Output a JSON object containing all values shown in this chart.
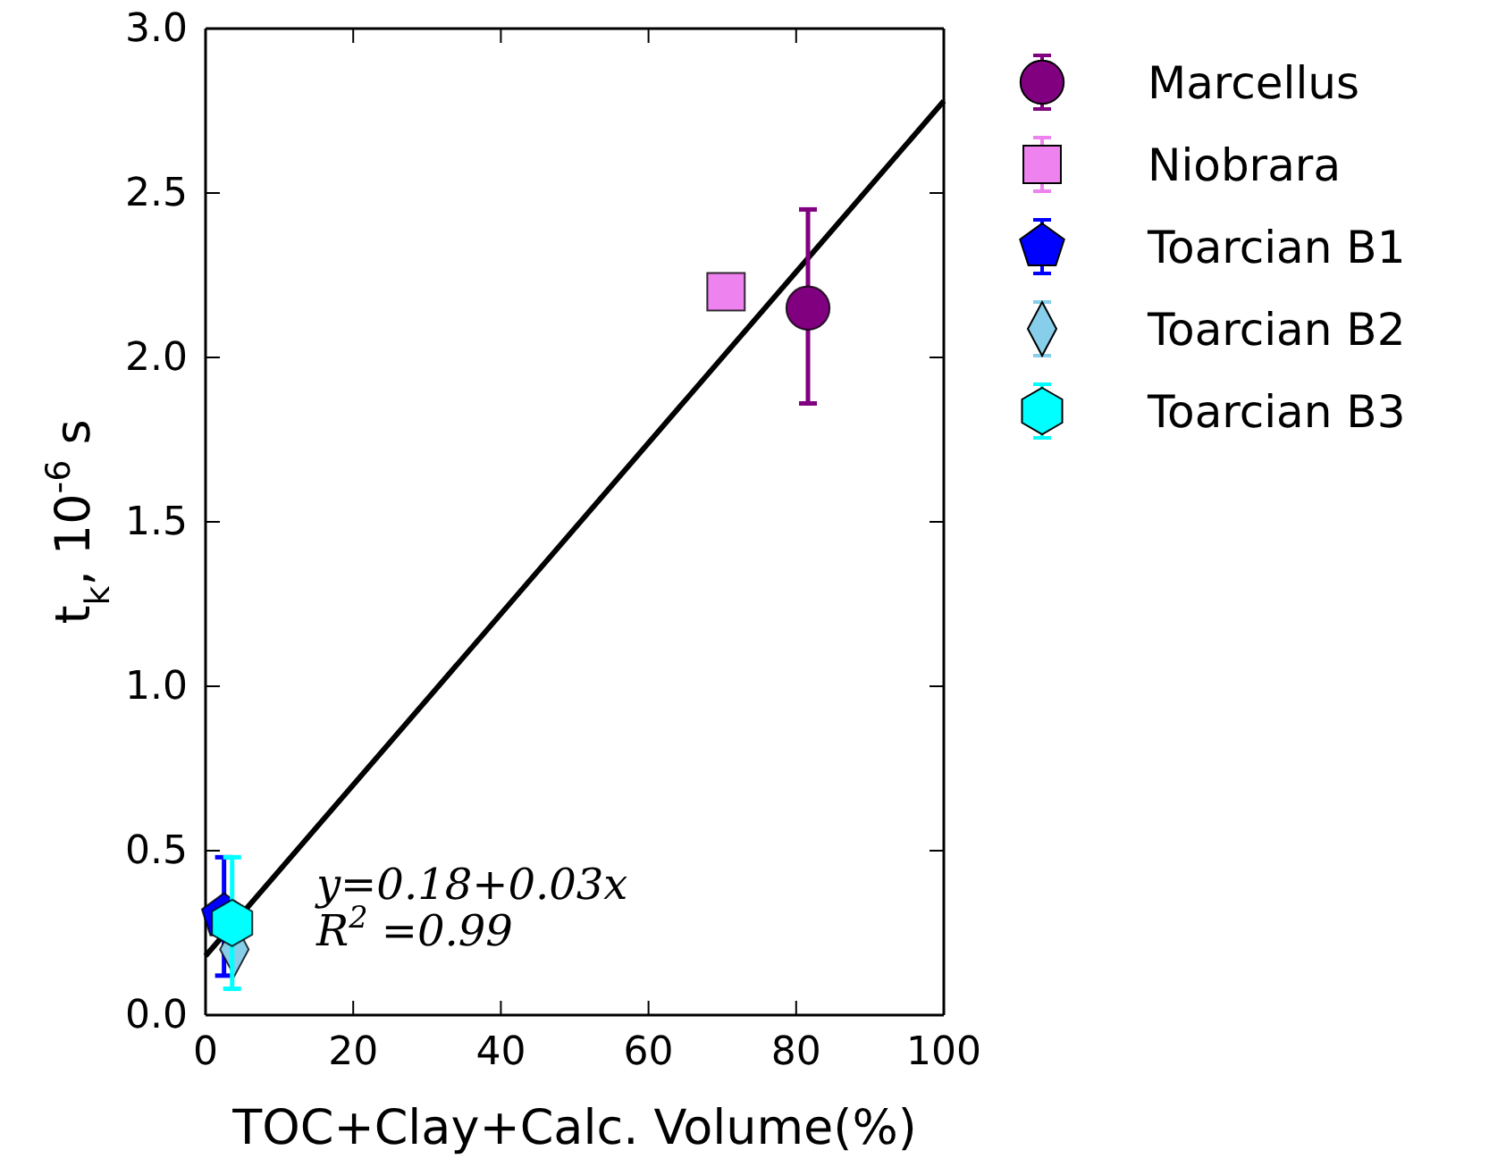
{
  "chart_data": {
    "type": "scatter",
    "xlabel": "TOC+Clay+Calc. Volume(%)",
    "ylabel": "t$_{k}$, 10$^{-6}$ s",
    "xlim": [
      0,
      100
    ],
    "xticks": [
      0,
      20,
      40,
      60,
      80,
      100
    ],
    "ylim": [
      0,
      3.0
    ],
    "yticks": [
      {
        "value": 0,
        "label": "0.0"
      },
      0.5,
      {
        "value": 1,
        "label": "1.0"
      },
      1.5,
      {
        "value": 2,
        "label": "2.0"
      },
      2.5,
      {
        "value": 3,
        "label": "3.0"
      }
    ],
    "grid": false,
    "legend": "right",
    "annotations": [
      "y=0.18+0.03x",
      "R$^{2}$ =0.99"
    ],
    "series": [
      {
        "type": "line",
        "color": "#000000",
        "x": [
          0,
          100
        ],
        "values": [
          0.18,
          2.78
        ],
        "line_style": "solid"
      },
      {
        "name": "Marcellus",
        "color": "#800080",
        "x": [
          81.6
        ],
        "values": [
          2.15
        ],
        "errors": [
          [
            1.86,
            2.45
          ]
        ],
        "marker": "circle"
      },
      {
        "name": "Niobrara",
        "color": "#ee82ee",
        "x": [
          70.5
        ],
        "values": [
          2.2
        ],
        "marker": "square"
      },
      {
        "name": "Toarcian B1",
        "color": "#0000ff",
        "x": [
          2.5
        ],
        "values": [
          0.3
        ],
        "errors": [
          [
            0.12,
            0.48
          ]
        ]
      },
      {
        "name": "Toarcian B2",
        "color": "#87ceeb",
        "x": [
          3.9
        ],
        "values": [
          0.2
        ],
        "marker": "diamond"
      },
      {
        "name": "Toarcian B3",
        "color": "#00ffff",
        "x": [
          3.6
        ],
        "values": [
          0.28
        ],
        "errors": [
          [
            0.08,
            0.48
          ]
        ]
      }
    ]
  }
}
